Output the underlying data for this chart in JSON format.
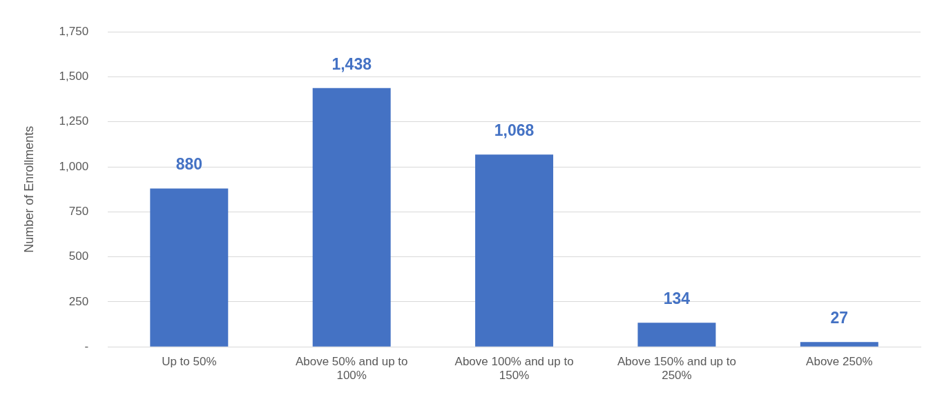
{
  "chart_data": {
    "type": "bar",
    "ylabel": "Number of Enrollments",
    "categories": [
      "Up to 50%",
      "Above 50% and up to 100%",
      "Above 100% and up to 150%",
      "Above 150% and up to 250%",
      "Above 250%"
    ],
    "values": [
      880,
      1438,
      1068,
      134,
      27
    ],
    "value_labels": [
      "880",
      "1,438",
      "1,068",
      "134",
      "27"
    ],
    "color": "#4472c4",
    "ylim": [
      0,
      1750
    ],
    "yticks": [
      {
        "value": 0,
        "label": "-"
      },
      {
        "value": 250,
        "label": "250"
      },
      {
        "value": 500,
        "label": "500"
      },
      {
        "value": 750,
        "label": "750"
      },
      {
        "value": 1000,
        "label": "1,000"
      },
      {
        "value": 1250,
        "label": "1,250"
      },
      {
        "value": 1500,
        "label": "1,500"
      },
      {
        "value": 1750,
        "label": "1,750"
      }
    ],
    "grid": "y"
  }
}
